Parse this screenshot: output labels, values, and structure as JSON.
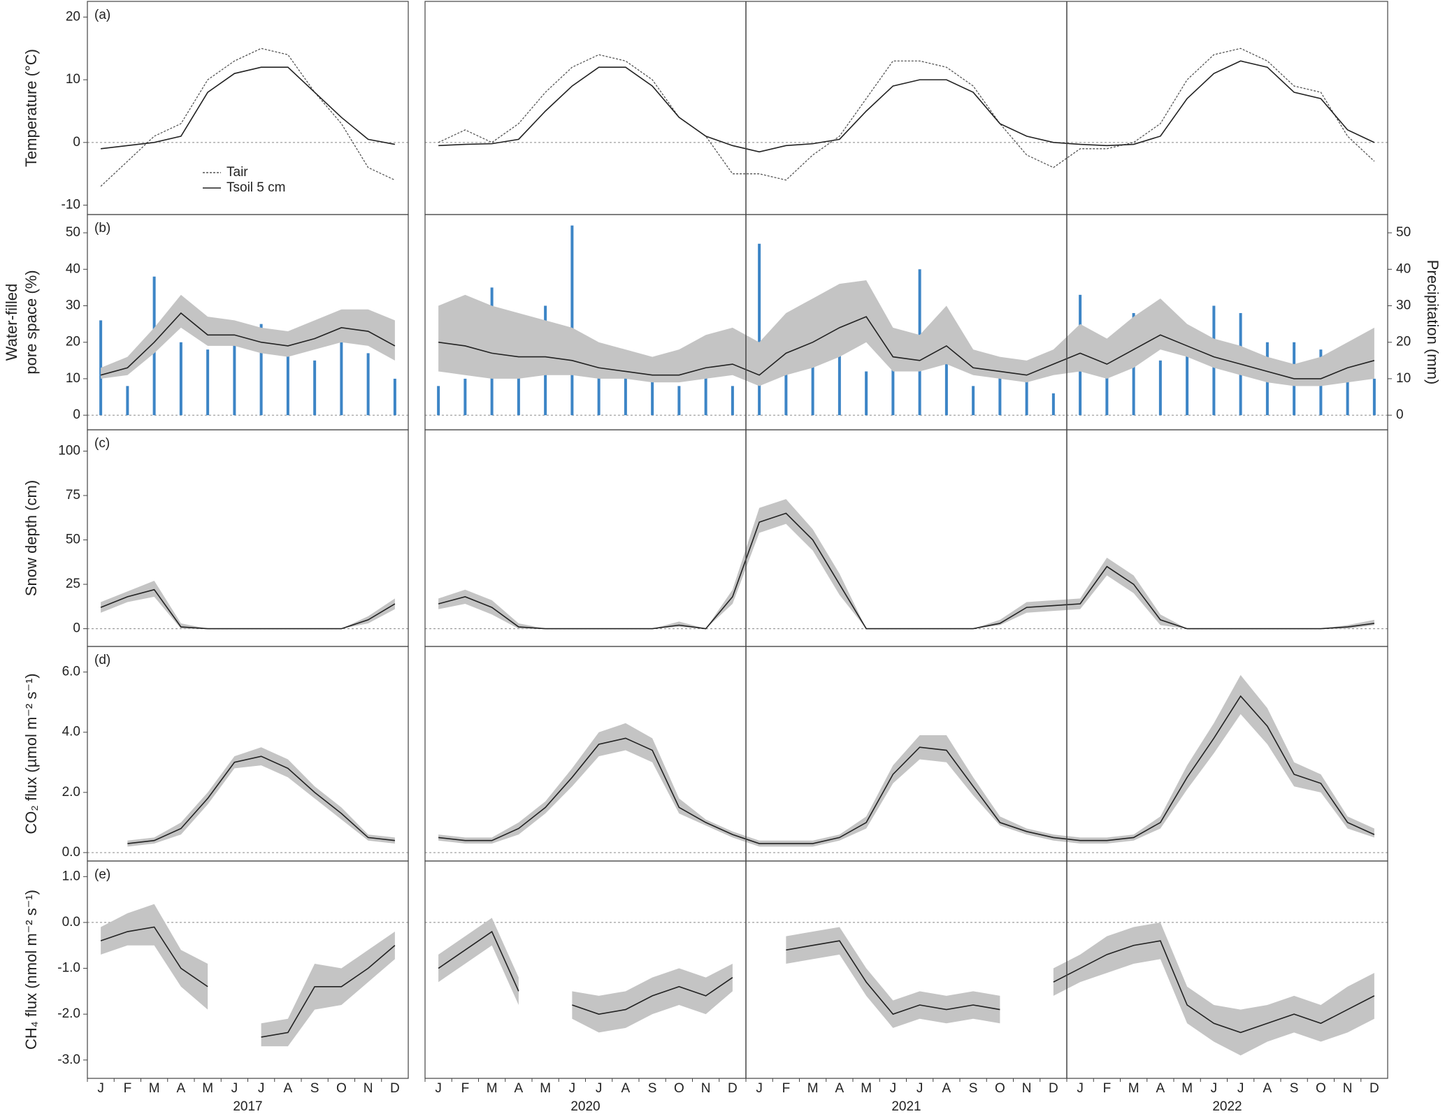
{
  "chart_data": [
    {
      "type": "line",
      "label": "(a)",
      "ylabel": "Temperature (°C)",
      "ylim": [
        -11.5,
        22.5
      ],
      "yticks": [
        -10,
        0,
        10,
        20
      ],
      "legend": "lower-left",
      "series": [
        {
          "name": "Tair",
          "color": "#555555",
          "style": "dotted",
          "values": [
            -7,
            -3,
            1,
            3,
            10,
            13,
            15,
            14,
            8,
            3,
            -4,
            -6,
            0,
            2,
            0,
            3,
            8,
            12,
            14,
            13,
            10,
            4,
            1,
            -5,
            -5,
            -6,
            -2,
            1,
            7,
            13,
            13,
            12,
            9,
            3,
            -2,
            -4,
            -1,
            -1,
            0,
            3,
            10,
            14,
            15,
            13,
            9,
            8,
            1,
            -3
          ]
        },
        {
          "name": "Tsoil 5 cm",
          "color": "#222222",
          "style": "solid",
          "values": [
            -1,
            -0.5,
            0,
            1,
            8,
            11,
            12,
            12,
            8,
            4,
            0.5,
            -0.3,
            -0.5,
            -0.3,
            -0.2,
            0.5,
            5,
            9,
            12,
            12,
            9,
            4,
            1,
            -0.5,
            -1.5,
            -0.5,
            -0.2,
            0.5,
            5,
            9,
            10,
            10,
            8,
            3,
            1,
            0,
            -0.3,
            -0.5,
            -0.3,
            1,
            7,
            11,
            13,
            12,
            8,
            7,
            2,
            0
          ]
        }
      ]
    },
    {
      "type": "line",
      "label": "(b)",
      "ylabel": [
        "Water-filled",
        "pore space (%)"
      ],
      "y2label": "Precipitation (mm)",
      "ylim": [
        -4,
        55
      ],
      "yticks": [
        0,
        10,
        20,
        30,
        40,
        50
      ],
      "y2lim": [
        -4,
        55
      ],
      "y2ticks": [
        0,
        10,
        20,
        30,
        40,
        50
      ],
      "series": [
        {
          "type": "bar",
          "axis": "y2",
          "color": "#3d85c6",
          "values": [
            26,
            8,
            38,
            20,
            18,
            20,
            25,
            22,
            15,
            20,
            17,
            10,
            8,
            10,
            35,
            12,
            30,
            52,
            12,
            14,
            10,
            8,
            17,
            8,
            47,
            20,
            15,
            30,
            12,
            20,
            40,
            25,
            8,
            12,
            10,
            6,
            33,
            15,
            28,
            15,
            18,
            30,
            28,
            20,
            20,
            18,
            12,
            10
          ]
        },
        {
          "type": "line",
          "color": "#222222",
          "band_color": "#c4c4c4",
          "values": [
            11,
            13,
            20,
            28,
            22,
            22,
            20,
            19,
            21,
            24,
            23,
            19,
            20,
            19,
            17,
            16,
            16,
            15,
            13,
            12,
            11,
            11,
            13,
            14,
            11,
            17,
            20,
            24,
            27,
            16,
            15,
            19,
            13,
            12,
            11,
            14,
            17,
            14,
            18,
            22,
            19,
            16,
            14,
            12,
            10,
            10,
            13,
            15
          ],
          "lower": [
            10,
            11,
            17,
            24,
            19,
            19,
            17,
            16,
            18,
            20,
            19,
            15,
            12,
            11,
            10,
            10,
            11,
            11,
            10,
            10,
            9,
            9,
            10,
            11,
            8,
            11,
            13,
            16,
            20,
            12,
            12,
            14,
            11,
            10,
            9,
            11,
            12,
            10,
            13,
            18,
            16,
            13,
            11,
            9,
            8,
            8,
            9,
            10
          ],
          "upper": [
            13,
            16,
            24,
            33,
            27,
            26,
            24,
            23,
            26,
            29,
            29,
            26,
            30,
            33,
            30,
            28,
            26,
            24,
            20,
            18,
            16,
            18,
            22,
            24,
            20,
            28,
            32,
            36,
            37,
            24,
            22,
            30,
            18,
            16,
            15,
            18,
            25,
            21,
            27,
            32,
            25,
            21,
            19,
            16,
            14,
            16,
            20,
            24
          ]
        }
      ]
    },
    {
      "type": "line",
      "label": "(c)",
      "ylabel": "Snow depth (cm)",
      "ylim": [
        -10,
        112
      ],
      "yticks": [
        0,
        25,
        50,
        75,
        100
      ],
      "series": [
        {
          "color": "#222222",
          "band_color": "#c4c4c4",
          "values": [
            12,
            18,
            22,
            1,
            0,
            0,
            0,
            0,
            0,
            0,
            5,
            14,
            14,
            18,
            12,
            1,
            0,
            0,
            0,
            0,
            0,
            2,
            0,
            18,
            60,
            65,
            50,
            25,
            0,
            0,
            0,
            0,
            0,
            3,
            12,
            13,
            14,
            35,
            25,
            5,
            0,
            0,
            0,
            0,
            0,
            0,
            1,
            3
          ],
          "lower": [
            9,
            15,
            18,
            0,
            0,
            0,
            0,
            0,
            0,
            0,
            3,
            11,
            11,
            14,
            8,
            0,
            0,
            0,
            0,
            0,
            0,
            1,
            0,
            14,
            54,
            59,
            44,
            19,
            0,
            0,
            0,
            0,
            0,
            2,
            9,
            10,
            11,
            30,
            20,
            2,
            0,
            0,
            0,
            0,
            0,
            0,
            0,
            2
          ],
          "upper": [
            15,
            21,
            27,
            3,
            0,
            0,
            0,
            0,
            0,
            0,
            7,
            17,
            17,
            22,
            16,
            3,
            0,
            0,
            0,
            0,
            0,
            4,
            0,
            22,
            68,
            73,
            56,
            31,
            0,
            0,
            0,
            0,
            0,
            5,
            15,
            16,
            17,
            40,
            30,
            8,
            0,
            0,
            0,
            0,
            0,
            0,
            2,
            5
          ]
        }
      ]
    },
    {
      "type": "line",
      "label": "(d)",
      "ylabel": "CO₂ flux (µmol m⁻² s⁻¹)",
      "ylim": [
        -0.28,
        6.85
      ],
      "yticks": [
        {
          "value": 0,
          "label": "0.0"
        },
        {
          "value": 2,
          "label": "2.0"
        },
        {
          "value": 4,
          "label": "4.0"
        },
        {
          "value": 6,
          "label": "6.0"
        }
      ],
      "series": [
        {
          "color": "#222222",
          "band_color": "#c4c4c4",
          "values": [
            null,
            0.3,
            0.4,
            0.8,
            1.8,
            3.0,
            3.2,
            2.8,
            2.0,
            1.3,
            0.5,
            0.4,
            0.5,
            0.4,
            0.4,
            0.8,
            1.5,
            2.5,
            3.6,
            3.8,
            3.4,
            1.5,
            1.0,
            0.6,
            0.3,
            0.3,
            0.3,
            0.5,
            1.0,
            2.6,
            3.5,
            3.4,
            2.2,
            1.0,
            0.7,
            0.5,
            0.4,
            0.4,
            0.5,
            1.0,
            2.5,
            3.8,
            5.2,
            4.2,
            2.6,
            2.3,
            1.0,
            0.6
          ],
          "lower": [
            null,
            0.2,
            0.3,
            0.6,
            1.6,
            2.8,
            2.9,
            2.5,
            1.8,
            1.1,
            0.4,
            0.3,
            0.4,
            0.3,
            0.3,
            0.6,
            1.3,
            2.2,
            3.2,
            3.4,
            3.0,
            1.3,
            0.9,
            0.5,
            0.2,
            0.2,
            0.2,
            0.4,
            0.8,
            2.3,
            3.1,
            3.0,
            1.9,
            0.9,
            0.6,
            0.4,
            0.3,
            0.3,
            0.4,
            0.8,
            2.1,
            3.3,
            4.6,
            3.6,
            2.2,
            2.0,
            0.8,
            0.5
          ],
          "upper": [
            null,
            0.4,
            0.5,
            1.0,
            2.0,
            3.2,
            3.5,
            3.1,
            2.2,
            1.5,
            0.6,
            0.5,
            0.6,
            0.5,
            0.5,
            1.0,
            1.7,
            2.8,
            4.0,
            4.3,
            3.8,
            1.8,
            1.1,
            0.7,
            0.4,
            0.4,
            0.4,
            0.6,
            1.2,
            2.9,
            3.9,
            3.9,
            2.5,
            1.2,
            0.8,
            0.6,
            0.5,
            0.5,
            0.6,
            1.2,
            2.9,
            4.3,
            5.9,
            4.8,
            3.0,
            2.6,
            1.2,
            0.8
          ]
        }
      ]
    },
    {
      "type": "line",
      "label": "(e)",
      "ylabel": "CH₄ flux (nmol m⁻² s⁻¹)",
      "ylim": [
        -3.4,
        1.34
      ],
      "yticks": [
        {
          "value": -3,
          "label": "-3.0"
        },
        {
          "value": -2,
          "label": "-2.0"
        },
        {
          "value": -1,
          "label": "-1.0"
        },
        {
          "value": 0,
          "label": "0.0"
        },
        {
          "value": 1,
          "label": "1.0"
        }
      ],
      "months": [
        "J",
        "F",
        "M",
        "A",
        "M",
        "J",
        "J",
        "A",
        "S",
        "O",
        "N",
        "D"
      ],
      "years": [
        "2017",
        "2020",
        "2021",
        "2022"
      ],
      "series": [
        {
          "color": "#222222",
          "band_color": "#c4c4c4",
          "values": [
            -0.4,
            -0.2,
            -0.1,
            -1.0,
            -1.4,
            null,
            -2.5,
            -2.4,
            -1.4,
            -1.4,
            -1.0,
            -0.5,
            -1.0,
            -0.6,
            -0.2,
            -1.5,
            null,
            -1.8,
            -2.0,
            -1.9,
            -1.6,
            -1.4,
            -1.6,
            -1.2,
            null,
            -0.6,
            -0.5,
            -0.4,
            -1.3,
            -2.0,
            -1.8,
            -1.9,
            -1.8,
            -1.9,
            null,
            -1.3,
            -1.0,
            -0.7,
            -0.5,
            -0.4,
            -1.8,
            -2.2,
            -2.4,
            -2.2,
            -2.0,
            -2.2,
            -1.9,
            -1.6
          ],
          "lower": [
            -0.7,
            -0.5,
            -0.5,
            -1.4,
            -1.9,
            null,
            -2.7,
            -2.7,
            -1.9,
            -1.8,
            -1.3,
            -0.8,
            -1.3,
            -0.9,
            -0.5,
            -1.8,
            null,
            -2.1,
            -2.4,
            -2.3,
            -2.0,
            -1.8,
            -2.0,
            -1.5,
            null,
            -0.9,
            -0.8,
            -0.7,
            -1.6,
            -2.3,
            -2.1,
            -2.2,
            -2.1,
            -2.2,
            null,
            -1.6,
            -1.3,
            -1.1,
            -0.9,
            -0.8,
            -2.2,
            -2.6,
            -2.9,
            -2.6,
            -2.4,
            -2.6,
            -2.4,
            -2.1
          ],
          "upper": [
            -0.1,
            0.2,
            0.4,
            -0.6,
            -0.9,
            null,
            -2.2,
            -2.1,
            -0.9,
            -1.0,
            -0.6,
            -0.2,
            -0.7,
            -0.3,
            0.1,
            -1.2,
            null,
            -1.5,
            -1.6,
            -1.5,
            -1.2,
            -1.0,
            -1.2,
            -0.9,
            null,
            -0.3,
            -0.2,
            -0.1,
            -1.0,
            -1.7,
            -1.5,
            -1.6,
            -1.5,
            -1.6,
            null,
            -1.0,
            -0.7,
            -0.3,
            -0.1,
            0.0,
            -1.4,
            -1.8,
            -1.9,
            -1.8,
            -1.6,
            -1.8,
            -1.4,
            -1.1
          ]
        }
      ]
    }
  ]
}
